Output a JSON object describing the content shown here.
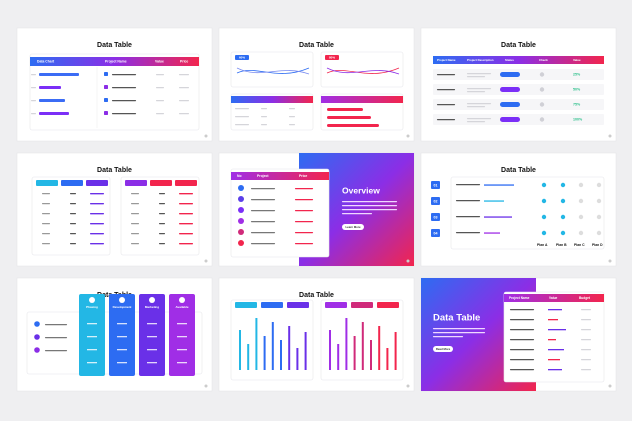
{
  "slides": [
    {
      "title": "Data Table",
      "headers": [
        "Data Chart",
        "Project Name",
        "Value",
        "Price"
      ]
    },
    {
      "title": "Data Table",
      "badges": [
        "60%",
        "80%"
      ]
    },
    {
      "title": "Data Table",
      "headers": [
        "Project Name",
        "Project Description",
        "Status",
        "Check",
        "Value"
      ],
      "values": [
        "25%",
        "50%",
        "75%",
        "100%"
      ]
    },
    {
      "title": "Data Table"
    },
    {
      "title": "Overview",
      "headers": [
        "No",
        "Project",
        "Price"
      ],
      "button": "Learn More"
    },
    {
      "title": "Data Table",
      "numbers": [
        "01",
        "02",
        "03",
        "04"
      ],
      "plans": [
        "Plan A",
        "Plan B",
        "Plan C",
        "Plan D"
      ]
    },
    {
      "title": "Data Table",
      "columns": [
        "Phasing",
        "Development",
        "Marketing",
        "Available"
      ]
    },
    {
      "title": "Data Table"
    },
    {
      "title": "Data Table",
      "headers": [
        "Project Name",
        "Value",
        "Budget"
      ],
      "button": "Read More"
    }
  ]
}
